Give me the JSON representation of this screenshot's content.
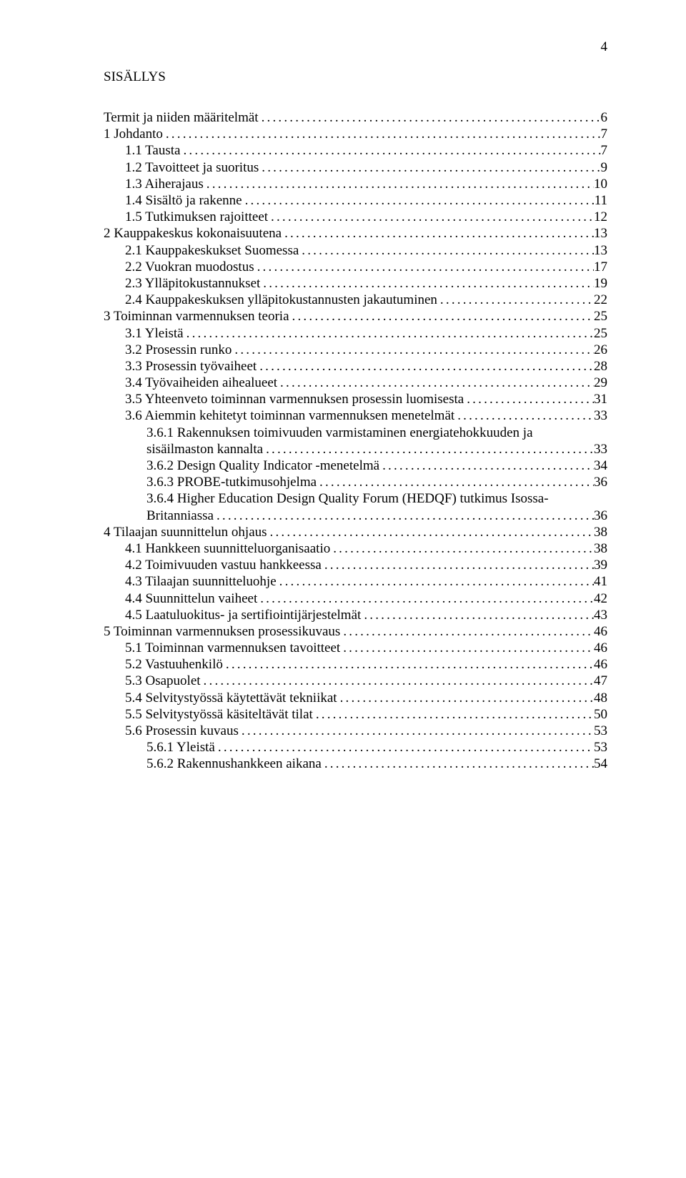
{
  "page_number": "4",
  "title": "SISÄLLYS",
  "font": {
    "family": "Times New Roman",
    "size_pt": 14.5,
    "color": "#000000"
  },
  "background_color": "#ffffff",
  "toc": [
    {
      "indent": 0,
      "label": "Termit ja niiden määritelmät",
      "page": "6"
    },
    {
      "indent": 0,
      "label": "1   Johdanto",
      "page": "7"
    },
    {
      "indent": 1,
      "label": "1.1   Tausta",
      "page": "7"
    },
    {
      "indent": 1,
      "label": "1.2   Tavoitteet ja suoritus",
      "page": "9"
    },
    {
      "indent": 1,
      "label": "1.3   Aiherajaus",
      "page": "10"
    },
    {
      "indent": 1,
      "label": "1.4   Sisältö ja rakenne",
      "page": "11"
    },
    {
      "indent": 1,
      "label": "1.5   Tutkimuksen rajoitteet",
      "page": "12"
    },
    {
      "indent": 0,
      "label": "2   Kauppakeskus kokonaisuutena",
      "page": "13"
    },
    {
      "indent": 1,
      "label": "2.1   Kauppakeskukset Suomessa",
      "page": "13"
    },
    {
      "indent": 1,
      "label": "2.2   Vuokran muodostus",
      "page": "17"
    },
    {
      "indent": 1,
      "label": "2.3   Ylläpitokustannukset",
      "page": "19"
    },
    {
      "indent": 1,
      "label": "2.4   Kauppakeskuksen ylläpitokustannusten jakautuminen",
      "page": "22"
    },
    {
      "indent": 0,
      "label": "3   Toiminnan varmennuksen teoria",
      "page": "25"
    },
    {
      "indent": 1,
      "label": "3.1   Yleistä",
      "page": "25"
    },
    {
      "indent": 1,
      "label": "3.2   Prosessin runko",
      "page": "26"
    },
    {
      "indent": 1,
      "label": "3.3   Prosessin työvaiheet",
      "page": "28"
    },
    {
      "indent": 1,
      "label": "3.4   Työvaiheiden aihealueet",
      "page": "29"
    },
    {
      "indent": 1,
      "label": "3.5   Yhteenveto toiminnan varmennuksen prosessin luomisesta",
      "page": "31"
    },
    {
      "indent": 1,
      "label": "3.6   Aiemmin kehitetyt toiminnan varmennuksen menetelmät",
      "page": "33"
    },
    {
      "indent": 2,
      "label": "3.6.1   Rakennuksen  toimivuuden  varmistaminen  energiatehokkuuden  ja",
      "page": "",
      "no_dots": true
    },
    {
      "indent": 2,
      "label": "sisäilmaston kannalta",
      "page": "33"
    },
    {
      "indent": 2,
      "label": "3.6.2   Design Quality Indicator -menetelmä",
      "page": "34"
    },
    {
      "indent": 2,
      "label": "3.6.3   PROBE-tutkimusohjelma",
      "page": "36"
    },
    {
      "indent": 2,
      "label": "3.6.4   Higher Education Design Quality Forum (HEDQF) tutkimus Isossa-",
      "page": "",
      "no_dots": true
    },
    {
      "indent": 2,
      "label": "Britanniassa",
      "page": "36"
    },
    {
      "indent": 0,
      "label": "4   Tilaajan suunnittelun ohjaus",
      "page": "38"
    },
    {
      "indent": 1,
      "label": "4.1   Hankkeen suunnitteluorganisaatio",
      "page": "38"
    },
    {
      "indent": 1,
      "label": "4.2   Toimivuuden vastuu hankkeessa",
      "page": "39"
    },
    {
      "indent": 1,
      "label": "4.3   Tilaajan suunnitteluohje",
      "page": "41"
    },
    {
      "indent": 1,
      "label": "4.4   Suunnittelun vaiheet",
      "page": "42"
    },
    {
      "indent": 1,
      "label": "4.5   Laatuluokitus- ja sertifiointijärjestelmät",
      "page": "43"
    },
    {
      "indent": 0,
      "label": "5   Toiminnan varmennuksen prosessikuvaus",
      "page": "46"
    },
    {
      "indent": 1,
      "label": "5.1   Toiminnan varmennuksen tavoitteet",
      "page": "46"
    },
    {
      "indent": 1,
      "label": "5.2   Vastuuhenkilö",
      "page": "46"
    },
    {
      "indent": 1,
      "label": "5.3   Osapuolet",
      "page": "47"
    },
    {
      "indent": 1,
      "label": "5.4   Selvitystyössä käytettävät tekniikat",
      "page": "48"
    },
    {
      "indent": 1,
      "label": "5.5   Selvitystyössä käsiteltävät tilat",
      "page": "50"
    },
    {
      "indent": 1,
      "label": "5.6   Prosessin kuvaus",
      "page": "53"
    },
    {
      "indent": 2,
      "label": "5.6.1   Yleistä",
      "page": "53"
    },
    {
      "indent": 2,
      "label": "5.6.2   Rakennushankkeen aikana",
      "page": "54"
    }
  ]
}
